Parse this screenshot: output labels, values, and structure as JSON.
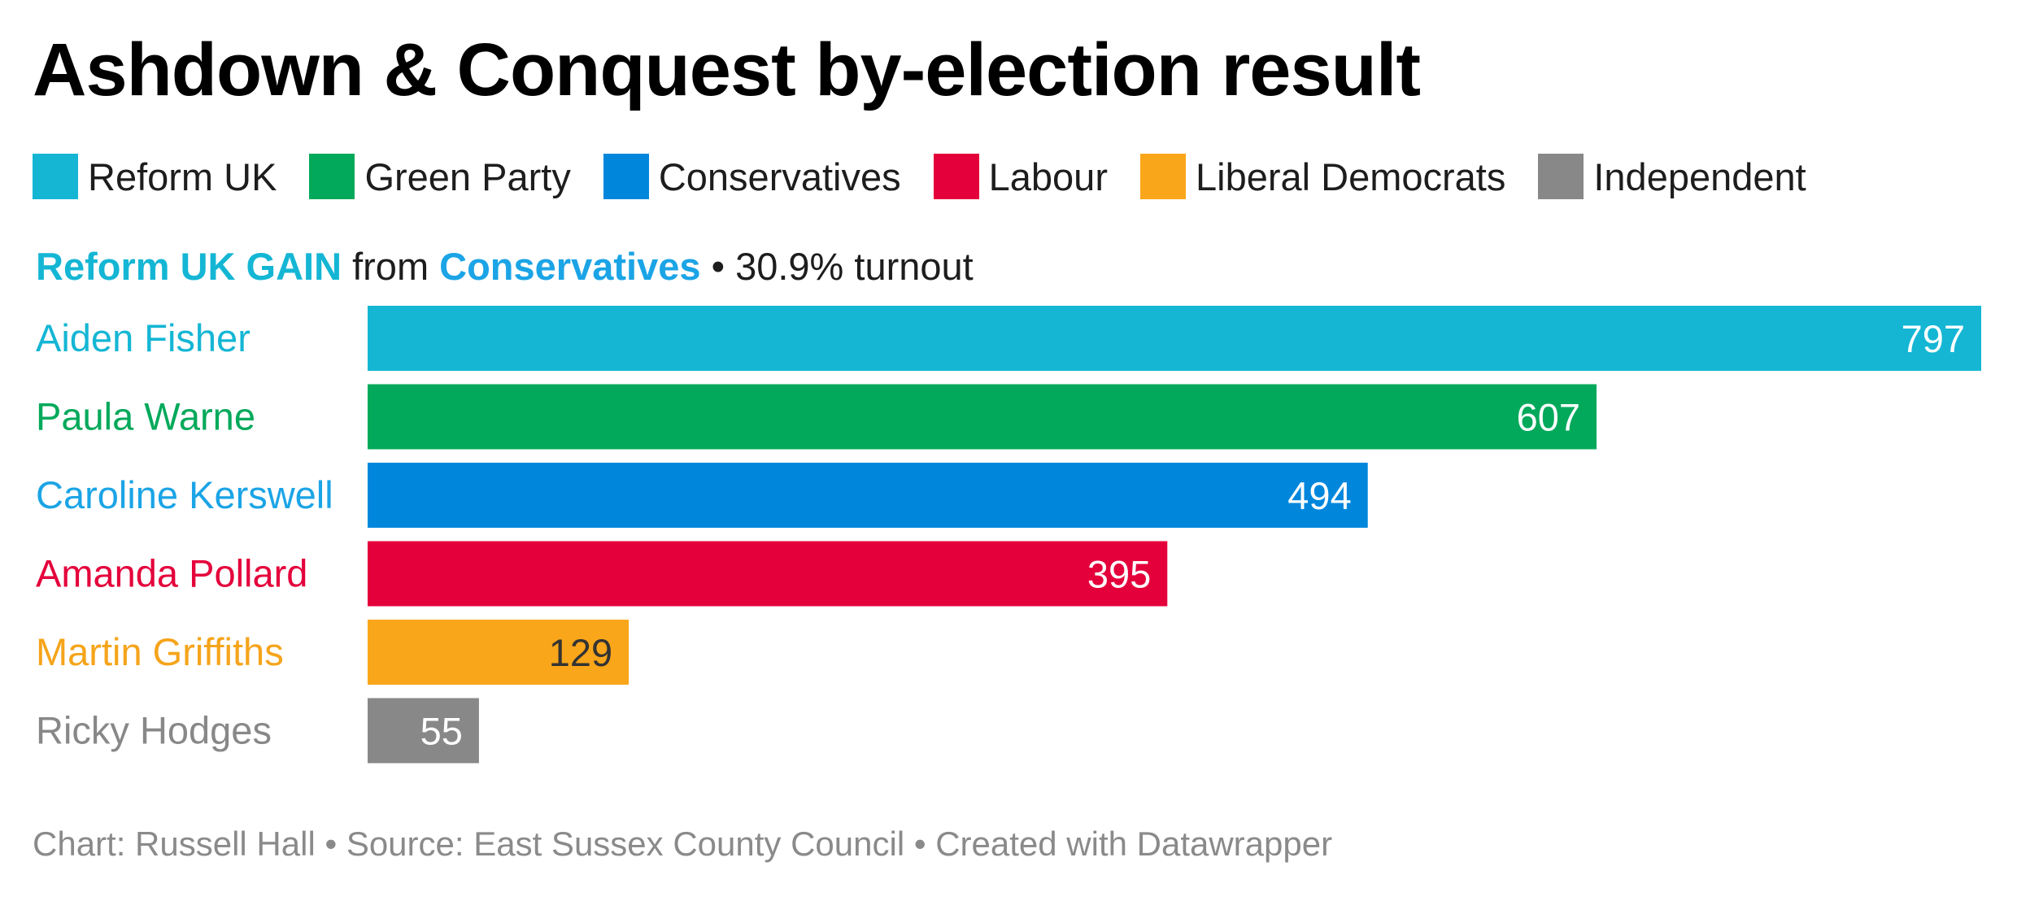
{
  "title": "Ashdown & Conquest by-election result",
  "legend": [
    {
      "label": "Reform UK",
      "color": "#14b6d4"
    },
    {
      "label": "Green Party",
      "color": "#02a95b"
    },
    {
      "label": "Conservatives",
      "color": "#0087dc"
    },
    {
      "label": "Labour",
      "color": "#e4003b"
    },
    {
      "label": "Liberal Democrats",
      "color": "#faa61a"
    },
    {
      "label": "Independent",
      "color": "#888888"
    }
  ],
  "subtitle": {
    "winner": "Reform UK GAIN",
    "from": "from",
    "loser": "Conservatives",
    "turnout": "• 30.9% turnout",
    "winner_color": "#14b6d4",
    "loser_color": "#1ba4e6"
  },
  "chart_data": {
    "type": "bar",
    "orientation": "horizontal",
    "title": "Ashdown & Conquest by-election result",
    "categories": [
      "Aiden Fisher",
      "Paula Warne",
      "Caroline Kerswell",
      "Amanda Pollard",
      "Martin Griffiths",
      "Ricky Hodges"
    ],
    "values": [
      797,
      607,
      494,
      395,
      129,
      55
    ],
    "parties": [
      "Reform UK",
      "Green Party",
      "Conservatives",
      "Labour",
      "Liberal Democrats",
      "Independent"
    ],
    "colors": [
      "#14b6d4",
      "#02a95b",
      "#0087dc",
      "#e4003b",
      "#faa61a",
      "#888888"
    ],
    "label_colors": [
      "#14b6d4",
      "#02a95b",
      "#1ba4e6",
      "#e4003b",
      "#f5a41a",
      "#888888"
    ],
    "value_label_colors": [
      "#ffffff",
      "#ffffff",
      "#ffffff",
      "#ffffff",
      "#333333",
      "#ffffff"
    ],
    "xlim": [
      0,
      797
    ],
    "xlabel": "",
    "ylabel": ""
  },
  "footer": "Chart: Russell Hall • Source: East Sussex County Council • Created with Datawrapper"
}
